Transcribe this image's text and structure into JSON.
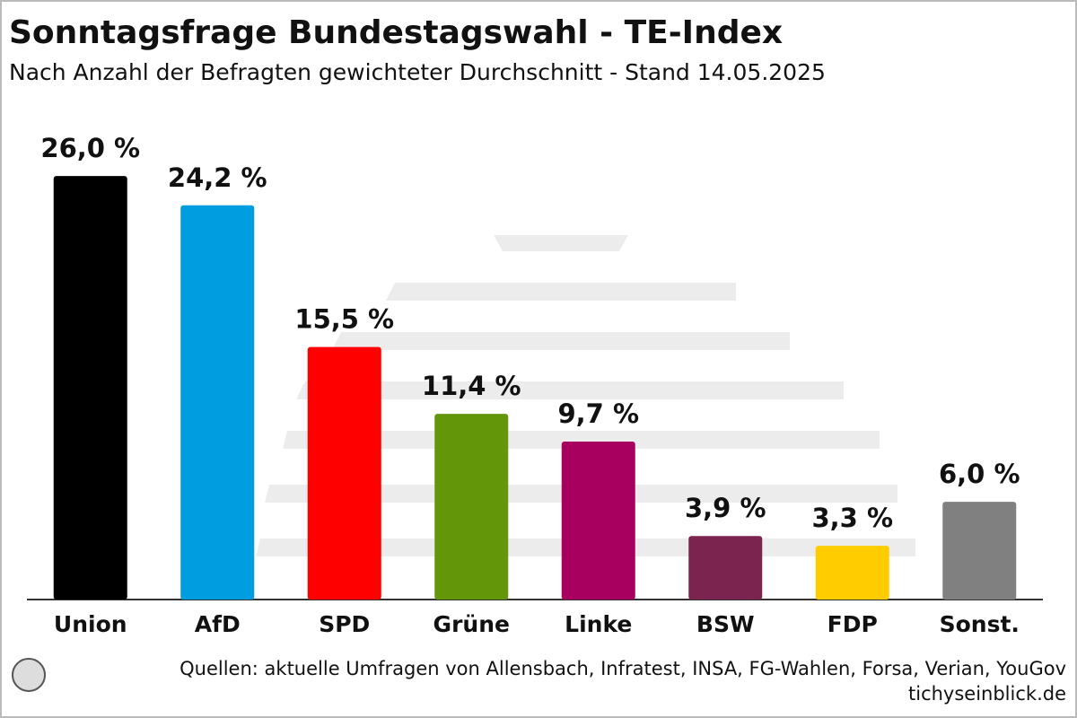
{
  "chart_data": {
    "type": "bar",
    "title": "Sonntagsfrage Bundestagswahl - TE-Index",
    "subtitle": "Nach Anzahl der Befragten gewichteter Durchschnitt - Stand 14.05.2025",
    "categories": [
      "Union",
      "AfD",
      "SPD",
      "Grüne",
      "Linke",
      "BSW",
      "FDP",
      "Sonst."
    ],
    "values": [
      26.0,
      24.2,
      15.5,
      11.4,
      9.7,
      3.9,
      3.3,
      6.0
    ],
    "value_labels": [
      "26,0 %",
      "24,2 %",
      "15,5 %",
      "11,4 %",
      "9,7 %",
      "3,9 %",
      "3,3 %",
      "6,0 %"
    ],
    "colors": [
      "#000000",
      "#009ee0",
      "#ff0000",
      "#64960a",
      "#a8005f",
      "#7b2450",
      "#ffcc00",
      "#808080"
    ],
    "source": "Quellen: aktuelle Umfragen von Allensbach, Infratest, INSA, FG-Wahlen, Forsa, Verian, YouGov",
    "website": "tichyseinblick.de"
  }
}
